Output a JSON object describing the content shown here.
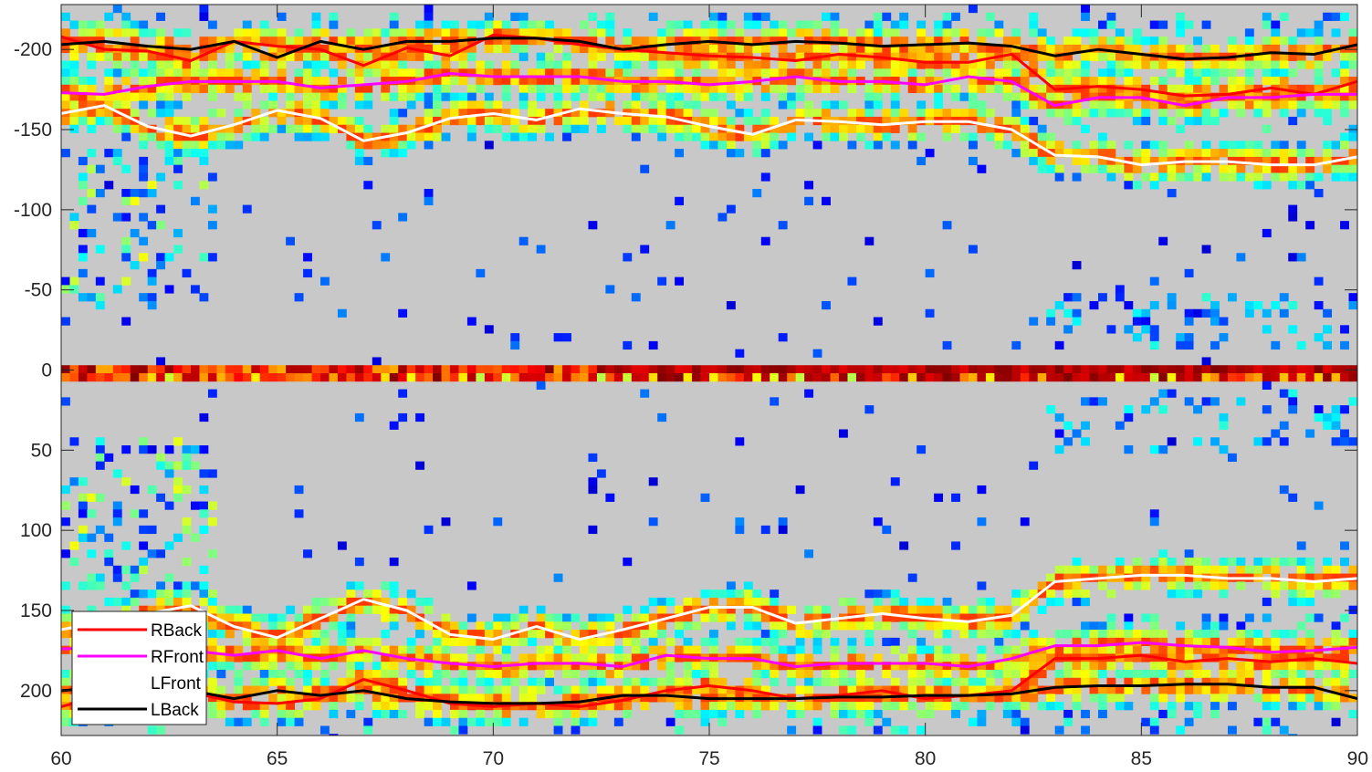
{
  "chart_data": {
    "type": "heatmap",
    "xlim": [
      60,
      90
    ],
    "ylim": [
      -228,
      228
    ],
    "y_reversed": true,
    "x_ticks": [
      60,
      65,
      70,
      75,
      80,
      85,
      90
    ],
    "y_ticks": [
      -200,
      -150,
      -100,
      -50,
      0,
      50,
      100,
      150,
      200
    ],
    "grid": false,
    "legend_placement": "bottom-left",
    "background_color": "#c8c8c8",
    "colormap": "jet",
    "heatmap_bands": [
      {
        "y": 0,
        "half_width": 5,
        "intensity": 1.0
      },
      {
        "y": -205,
        "half_width": 9,
        "intensity": 0.6
      },
      {
        "y": -183,
        "half_width": 8,
        "intensity": 0.5
      },
      {
        "y": 175,
        "half_width": 10,
        "intensity": 0.5
      },
      {
        "y": 203,
        "half_width": 10,
        "intensity": 0.4
      }
    ],
    "series": [
      {
        "name": "RBack",
        "color": "#ff0000",
        "x": [
          60,
          61,
          62,
          63,
          64,
          65,
          66,
          67,
          68,
          69,
          70,
          71,
          72,
          73,
          74,
          75,
          76,
          77,
          78,
          79,
          80,
          81,
          82,
          83,
          84,
          85,
          86,
          87,
          88,
          89,
          90
        ],
        "y": [
          -208,
          -200,
          -199,
          -193,
          -205,
          -202,
          -200,
          -190,
          -201,
          -196,
          -209,
          -207,
          -203,
          -200,
          -198,
          -196,
          -195,
          -193,
          -197,
          -195,
          -192,
          -192,
          -197,
          -175,
          -177,
          -175,
          -171,
          -172,
          -176,
          -172,
          -180
        ]
      },
      {
        "name": "RFront",
        "color": "#ff00ff",
        "x": [
          60,
          61,
          62,
          63,
          64,
          65,
          66,
          67,
          68,
          69,
          70,
          71,
          72,
          73,
          74,
          75,
          76,
          77,
          78,
          79,
          80,
          81,
          82,
          83,
          84,
          85,
          86,
          87,
          88,
          89,
          90
        ],
        "y": [
          -173,
          -172,
          -177,
          -180,
          -180,
          -180,
          -176,
          -178,
          -180,
          -185,
          -183,
          -183,
          -183,
          -180,
          -180,
          -178,
          -180,
          -183,
          -180,
          -180,
          -178,
          -183,
          -180,
          -165,
          -170,
          -170,
          -165,
          -170,
          -170,
          -172,
          -172
        ]
      },
      {
        "name": "LFront",
        "color": "#ffffff",
        "x": [
          60,
          61,
          62,
          63,
          64,
          65,
          66,
          67,
          68,
          69,
          70,
          71,
          72,
          73,
          74,
          75,
          76,
          77,
          78,
          79,
          80,
          81,
          82,
          83,
          84,
          85,
          86,
          87,
          88,
          89,
          90
        ],
        "y": [
          -160,
          -165,
          -152,
          -146,
          -153,
          -162,
          -157,
          -143,
          -148,
          -157,
          -160,
          -156,
          -163,
          -160,
          -158,
          -152,
          -147,
          -156,
          -155,
          -153,
          -155,
          -155,
          -150,
          -134,
          -133,
          -128,
          -130,
          -130,
          -128,
          -128,
          -133
        ]
      },
      {
        "name": "LBack",
        "color": "#000000",
        "x": [
          60,
          61,
          62,
          63,
          64,
          65,
          66,
          67,
          68,
          69,
          70,
          71,
          72,
          73,
          74,
          75,
          76,
          77,
          78,
          79,
          80,
          81,
          82,
          83,
          84,
          85,
          86,
          87,
          88,
          89,
          90
        ],
        "y": [
          -203,
          -205,
          -202,
          -200,
          -205,
          -195,
          -205,
          -200,
          -205,
          -205,
          -207,
          -207,
          -205,
          -200,
          -203,
          -205,
          -203,
          -205,
          -204,
          -202,
          -203,
          -204,
          -202,
          -196,
          -200,
          -197,
          -194,
          -195,
          -198,
          -197,
          -203
        ]
      },
      {
        "name": "",
        "color": "#ff0000",
        "x": [
          60,
          61,
          62,
          63,
          64,
          65,
          66,
          67,
          68,
          69,
          70,
          71,
          72,
          73,
          74,
          75,
          76,
          77,
          78,
          79,
          80,
          81,
          82,
          83,
          84,
          85,
          86,
          87,
          88,
          89,
          90
        ],
        "y": [
          210,
          203,
          198,
          201,
          207,
          208,
          205,
          193,
          200,
          208,
          210,
          208,
          210,
          206,
          200,
          197,
          200,
          205,
          203,
          200,
          205,
          203,
          200,
          180,
          180,
          178,
          182,
          180,
          182,
          180,
          183
        ]
      },
      {
        "name": "",
        "color": "#ff00ff",
        "x": [
          60,
          61,
          62,
          63,
          64,
          65,
          66,
          67,
          68,
          69,
          70,
          71,
          72,
          73,
          74,
          75,
          76,
          77,
          78,
          79,
          80,
          81,
          82,
          83,
          84,
          85,
          86,
          87,
          88,
          89,
          90
        ],
        "y": [
          174,
          173,
          176,
          175,
          178,
          175,
          180,
          175,
          180,
          183,
          185,
          183,
          183,
          185,
          178,
          180,
          180,
          185,
          183,
          183,
          183,
          185,
          180,
          172,
          172,
          170,
          172,
          173,
          176,
          175,
          173
        ]
      },
      {
        "name": "",
        "color": "#ffffff",
        "x": [
          60,
          61,
          62,
          63,
          64,
          65,
          66,
          67,
          68,
          69,
          70,
          71,
          72,
          73,
          74,
          75,
          76,
          77,
          78,
          79,
          80,
          81,
          82,
          83,
          84,
          85,
          86,
          87,
          88,
          89,
          90
        ],
        "y": [
          162,
          157,
          152,
          147,
          160,
          167,
          155,
          143,
          150,
          165,
          168,
          160,
          168,
          162,
          155,
          148,
          148,
          158,
          155,
          152,
          155,
          157,
          153,
          132,
          130,
          128,
          128,
          130,
          130,
          132,
          130
        ]
      },
      {
        "name": "",
        "color": "#000000",
        "x": [
          60,
          61,
          62,
          63,
          64,
          65,
          66,
          67,
          68,
          69,
          70,
          71,
          72,
          73,
          74,
          75,
          76,
          77,
          78,
          79,
          80,
          81,
          82,
          83,
          84,
          85,
          86,
          87,
          88,
          89,
          90
        ],
        "y": [
          200,
          198,
          199,
          200,
          205,
          200,
          203,
          200,
          205,
          207,
          208,
          208,
          207,
          203,
          203,
          205,
          205,
          205,
          204,
          204,
          203,
          203,
          202,
          198,
          197,
          197,
          196,
          196,
          198,
          198,
          205
        ]
      }
    ],
    "legend": [
      "RBack",
      "RFront",
      "LFront",
      "LBack"
    ]
  }
}
